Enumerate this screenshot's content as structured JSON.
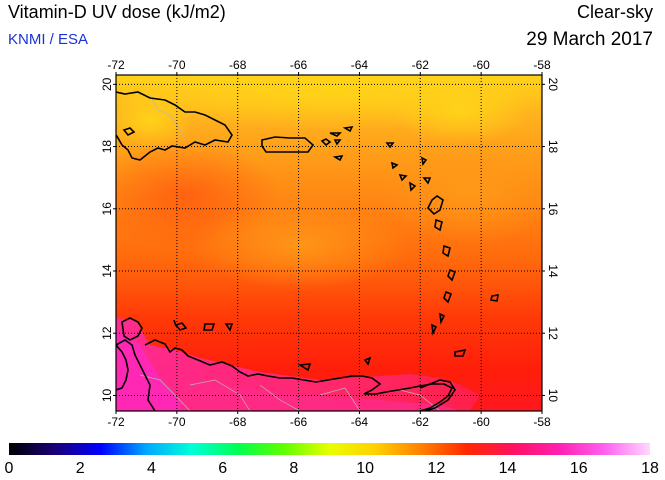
{
  "title": "Vitamin-D UV dose (kJ/m2)",
  "credit": "KNMI / ESA",
  "sky_condition": "Clear-sky",
  "date": "29 March 2017",
  "map": {
    "lon_range": [
      -72,
      -58
    ],
    "lat_range": [
      9.5,
      20.3
    ],
    "lon_ticks": [
      -72,
      -70,
      -68,
      -66,
      -64,
      -62,
      -60,
      -58
    ],
    "lat_ticks": [
      10,
      12,
      14,
      16,
      18,
      20
    ],
    "grid": "dotted"
  },
  "colorbar": {
    "min": 0,
    "max": 18,
    "tick_labels": [
      "0",
      "2",
      "4",
      "6",
      "8",
      "10",
      "12",
      "14",
      "16",
      "18"
    ],
    "colors": [
      "#000000",
      "#1a0078",
      "#0000ff",
      "#00a8ff",
      "#00ffd8",
      "#00ff50",
      "#60ff00",
      "#e8ff00",
      "#ffd000",
      "#ff8000",
      "#ff2800",
      "#ff1060",
      "#ff20b0",
      "#ff60f0",
      "#ffd8ff"
    ]
  }
}
